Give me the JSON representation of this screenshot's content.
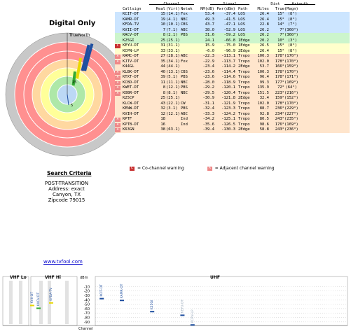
{
  "title": "Digital Only",
  "radar": {
    "north_label": "TrueNorth",
    "ring_labels": [
      "15",
      "5"
    ]
  },
  "criteria": {
    "title": "Search Criteria",
    "lines": [
      "POST-TRANSITION",
      "Address: exact",
      "Canyon, TX",
      "Zipcode 79015"
    ]
  },
  "link": "www.tvfool.com",
  "table": {
    "groups": {
      "channel": "Channel",
      "signal": "Signal",
      "dist": "Dist",
      "azimuth": "Azimuth"
    },
    "headers": {
      "callsign": "Callsign",
      "real": "Real",
      "virt": "(Virt)",
      "network": "Netwk",
      "nm": "NM(dB)",
      "pwr": "Pwr(dBm)",
      "path": "Path",
      "miles": "Miles",
      "true": "True",
      "mag": "(Magn)"
    },
    "rows": [
      {
        "flag": "",
        "callsign": "KCIT-DT",
        "real": "15",
        "virt": "(14.1)",
        "network": "Fox",
        "nm": "53.4",
        "pwr": "-37.4",
        "path": "LOS",
        "miles": "26.4",
        "true": "15°",
        "mag": "(8°)",
        "color": "#cce5ff"
      },
      {
        "flag": "",
        "callsign": "KAMR-DT",
        "real": "19",
        "virt": "(4.1)",
        "network": "NBC",
        "nm": "49.3",
        "pwr": "-41.5",
        "path": "LOS",
        "miles": "26.4",
        "true": "15°",
        "mag": "(8°)",
        "color": "#cce5ff"
      },
      {
        "flag": "",
        "callsign": "KFDA-TV",
        "real": "10",
        "virt": "(10.1)",
        "network": "CBS",
        "nm": "43.7",
        "pwr": "-47.1",
        "path": "LOS",
        "miles": "22.8",
        "true": "14°",
        "mag": "(7°)",
        "color": "#cce5ff"
      },
      {
        "flag": "",
        "callsign": "KVII-DT",
        "real": "7",
        "virt": "(7.1)",
        "network": "ABC",
        "nm": "38.0",
        "pwr": "-52.9",
        "path": "LOS",
        "miles": "26.2",
        "true": "7°",
        "mag": "(360°)",
        "color": "#cce5ff"
      },
      {
        "flag": "",
        "callsign": "KACV-DT",
        "real": "8",
        "virt": "(2.1)",
        "network": "PBS",
        "nm": "31.6",
        "pwr": "-59.2",
        "path": "LOS",
        "miles": "26.2",
        "true": "7°",
        "mag": "(360°)",
        "color": "#ccf5cc"
      },
      {
        "flag": "",
        "callsign": "K25GI",
        "real": "25",
        "virt": "(25.1)",
        "network": "",
        "nm": "24.1",
        "pwr": "-66.8",
        "path": "1Edge",
        "miles": "20.2",
        "true": "10°",
        "mag": "(3°)",
        "color": "#ccf5cc"
      },
      {
        "flag": "C",
        "callsign": "KEYU-DT",
        "real": "31",
        "virt": "(31.1)",
        "network": "",
        "nm": "15.9",
        "pwr": "-75.0",
        "path": "1Edge",
        "miles": "26.5",
        "true": "15°",
        "mag": "(8°)",
        "color": "#ffffcc"
      },
      {
        "flag": "",
        "callsign": "KCPN-LP",
        "real": "33",
        "virt": "(33.1)",
        "network": "",
        "nm": "-6.0",
        "pwr": "-96.9",
        "path": "2Edge",
        "miles": "26.4",
        "true": "15°",
        "mag": "(8°)",
        "color": "#ffffcc"
      },
      {
        "flag": "A",
        "callsign": "KAMC-DT",
        "real": "27",
        "virt": "(28.1)",
        "network": "ABC",
        "nm": "-22.3",
        "pwr": "-113.1",
        "path": "Tropo",
        "miles": "100.3",
        "true": "178°",
        "mag": "(170°)",
        "color": "#ffe5cc"
      },
      {
        "flag": "A",
        "callsign": "KJTV-DT",
        "real": "35",
        "virt": "(34.1)",
        "network": "Fox",
        "nm": "-22.9",
        "pwr": "-113.7",
        "path": "Tropo",
        "miles": "102.0",
        "true": "178°",
        "mag": "(170°)",
        "color": "#ffe5cc"
      },
      {
        "flag": "",
        "callsign": "K44GL",
        "real": "44",
        "virt": "(44.1)",
        "network": "",
        "nm": "-23.4",
        "pwr": "-114.2",
        "path": "2Edge",
        "miles": "53.7",
        "true": "166°",
        "mag": "(159°)",
        "color": "#ffe5cc"
      },
      {
        "flag": "A",
        "callsign": "KLBK-DT",
        "real": "40",
        "virt": "(13.1)",
        "network": "CBS",
        "nm": "-23.6",
        "pwr": "-114.4",
        "path": "Tropo",
        "miles": "100.3",
        "true": "178°",
        "mag": "(170°)",
        "color": "#ffe5cc"
      },
      {
        "flag": "A",
        "callsign": "KTXT-DT",
        "real": "39",
        "virt": "(5.1)",
        "network": "PBS",
        "nm": "-23.6",
        "pwr": "-114.6",
        "path": "Tropo",
        "miles": "96.4",
        "true": "178°",
        "mag": "(171°)",
        "color": "#ffe5cc"
      },
      {
        "flag": "A",
        "callsign": "KCBD-DT",
        "real": "11",
        "virt": "(11.1)",
        "network": "NBC",
        "nm": "-28.0",
        "pwr": "-118.9",
        "path": "Tropo",
        "miles": "99.3",
        "true": "177°",
        "mag": "(169°)",
        "color": "#ffe5cc"
      },
      {
        "flag": "A",
        "callsign": "KWET-DT",
        "real": "8",
        "virt": "(12.1)",
        "network": "PBS",
        "nm": "-29.2",
        "pwr": "-120.1",
        "path": "Tropo",
        "miles": "135.9",
        "true": "72°",
        "mag": "(64°)",
        "color": "#ffe5cc"
      },
      {
        "flag": "A",
        "callsign": "KOBR-DT",
        "real": "8",
        "virt": "(8.1)",
        "network": "NBC",
        "nm": "-29.5",
        "pwr": "-120.4",
        "path": "Tropo",
        "miles": "151.5",
        "true": "223°",
        "mag": "(216°)",
        "color": "#ffe5cc"
      },
      {
        "flag": "",
        "callsign": "K25CP",
        "real": "25",
        "virt": "(25.1)",
        "network": "",
        "nm": "-30.9",
        "pwr": "-121.8",
        "path": "2Edge",
        "miles": "32.4",
        "true": "159°",
        "mag": "(152°)",
        "color": "#ffe5cc"
      },
      {
        "flag": "",
        "callsign": "KLCW-DT",
        "real": "43",
        "virt": "(22.1)",
        "network": "CW",
        "nm": "-31.1",
        "pwr": "-121.9",
        "path": "Tropo",
        "miles": "102.0",
        "true": "178°",
        "mag": "(170°)",
        "color": "#ffe5cc"
      },
      {
        "flag": "",
        "callsign": "KENW-DT",
        "real": "32",
        "virt": "(3.1)",
        "network": "PBS",
        "nm": "-32.4",
        "pwr": "-123.3",
        "path": "Tropo",
        "miles": "88.7",
        "true": "236°",
        "mag": "(229°)",
        "color": "#ffe5cc"
      },
      {
        "flag": "",
        "callsign": "KVIH-DT",
        "real": "12",
        "virt": "(12.1)",
        "network": "ABC",
        "nm": "-33.3",
        "pwr": "-124.2",
        "path": "Tropo",
        "miles": "92.8",
        "true": "234°",
        "mag": "(227°)",
        "color": "#ffe5cc"
      },
      {
        "flag": "A",
        "callsign": "KPTF",
        "real": "18",
        "virt": "",
        "network": "Ind",
        "nm": "-34.2",
        "pwr": "-125.1",
        "path": "Tropo",
        "miles": "80.5",
        "true": "243°",
        "mag": "(235°)",
        "color": "#ffe5cc"
      },
      {
        "flag": "A",
        "callsign": "KPTB-DT",
        "real": "16",
        "virt": "",
        "network": "Ind",
        "nm": "-35.6",
        "pwr": "-126.5",
        "path": "Tropo",
        "miles": "98.6",
        "true": "176°",
        "mag": "(169°)",
        "color": "#ffe5cc"
      },
      {
        "flag": "A",
        "callsign": "K63GN",
        "real": "38",
        "virt": "(63.1)",
        "network": "",
        "nm": "-39.4",
        "pwr": "-130.3",
        "path": "2Edge",
        "miles": "58.8",
        "true": "243°",
        "mag": "(236°)",
        "color": "#ffe5cc"
      }
    ]
  },
  "legend": {
    "co_flag": "C",
    "co_label": "= Co-channel warning",
    "adj_flag": "A",
    "adj_label": "= Adjacent channel warning"
  },
  "chart_data": {
    "type": "bar",
    "panels": [
      "VHF Lo",
      "VHF Hi",
      "UHF"
    ],
    "ylabel": "dBm",
    "xlabel": "Channel",
    "y_ticks": [
      -10,
      -20,
      -30,
      -40,
      -50,
      -60,
      -70,
      -80,
      -90
    ],
    "ylim": [
      -95,
      0
    ],
    "stations": [
      {
        "name": "KVII-DT",
        "channel": 7,
        "dbm": -52.9
      },
      {
        "name": "KACV-DT",
        "channel": 8,
        "dbm": -59.2
      },
      {
        "name": "KFDA-TV",
        "channel": 10,
        "dbm": -47.1
      },
      {
        "name": "KCIT-DT",
        "channel": 15,
        "dbm": -37.4
      },
      {
        "name": "KAMR-DT",
        "channel": 19,
        "dbm": -41.5
      },
      {
        "name": "K25GI",
        "channel": 25,
        "dbm": -66.8
      },
      {
        "name": "KEYU-DT",
        "channel": 31,
        "dbm": -75.0
      },
      {
        "name": "KCPN-LP",
        "channel": 33,
        "dbm": -96.9
      }
    ]
  },
  "colors": {
    "blue": "#1f4fa0",
    "yellow": "#e8d800",
    "green": "#33aa33",
    "lightgray": "#dddddd"
  }
}
